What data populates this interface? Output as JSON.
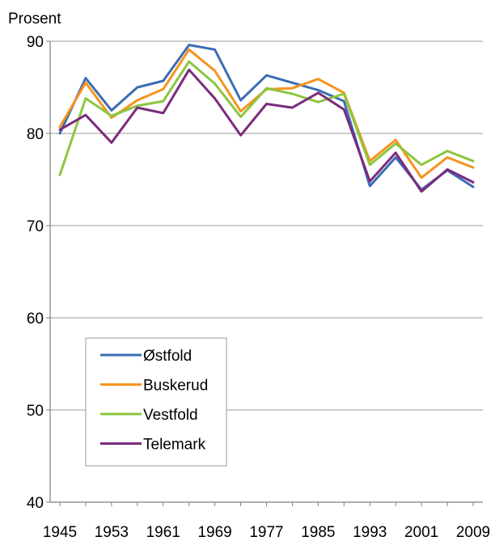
{
  "chart_data": {
    "type": "line",
    "title": "",
    "ylabel": "Prosent",
    "xlabel": "",
    "ylim": [
      40,
      90
    ],
    "yticks": [
      40,
      50,
      60,
      70,
      80,
      90
    ],
    "x": [
      1945,
      1949,
      1953,
      1957,
      1961,
      1965,
      1969,
      1973,
      1977,
      1981,
      1985,
      1989,
      1993,
      1997,
      2001,
      2005,
      2009
    ],
    "xtick_labels": [
      "1945",
      "1953",
      "1961",
      "1969",
      "1977",
      "1985",
      "1993",
      "2001",
      "2009"
    ],
    "xtick_values": [
      1945,
      1953,
      1961,
      1969,
      1977,
      1985,
      1993,
      2001,
      2009
    ],
    "grid": "horizontal",
    "legend_position": "bottom-left",
    "series": [
      {
        "name": "Østfold",
        "color": "#3b6db5",
        "values": [
          80.0,
          86.0,
          82.5,
          85.0,
          85.7,
          89.6,
          89.1,
          83.6,
          86.3,
          85.5,
          84.7,
          83.5,
          74.3,
          77.4,
          73.9,
          76.0,
          74.2
        ]
      },
      {
        "name": "Buskerud",
        "color": "#f7931e",
        "values": [
          80.7,
          85.5,
          81.7,
          83.6,
          84.8,
          89.1,
          86.8,
          82.4,
          84.8,
          84.9,
          85.9,
          84.4,
          77.0,
          79.3,
          75.2,
          77.4,
          76.3
        ]
      },
      {
        "name": "Vestfold",
        "color": "#8cc63f",
        "values": [
          75.5,
          83.8,
          81.9,
          83.0,
          83.5,
          87.8,
          85.4,
          81.8,
          84.9,
          84.3,
          83.4,
          84.3,
          76.6,
          78.9,
          76.6,
          78.1,
          77.0
        ]
      },
      {
        "name": "Telemark",
        "color": "#7b2b7e",
        "values": [
          80.4,
          82.0,
          79.0,
          82.8,
          82.2,
          86.9,
          83.8,
          79.8,
          83.2,
          82.8,
          84.4,
          82.6,
          74.8,
          77.9,
          73.7,
          76.1,
          74.7
        ]
      }
    ]
  }
}
